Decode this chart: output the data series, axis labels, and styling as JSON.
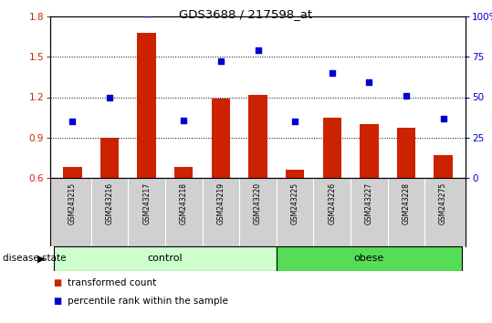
{
  "title": "GDS3688 / 217598_at",
  "samples": [
    "GSM243215",
    "GSM243216",
    "GSM243217",
    "GSM243218",
    "GSM243219",
    "GSM243220",
    "GSM243225",
    "GSM243226",
    "GSM243227",
    "GSM243228",
    "GSM243275"
  ],
  "bar_values": [
    0.68,
    0.9,
    1.68,
    0.68,
    1.19,
    1.22,
    0.66,
    1.05,
    1.0,
    0.97,
    0.77
  ],
  "scatter_values": [
    1.02,
    1.2,
    1.82,
    1.03,
    1.47,
    1.55,
    1.02,
    1.38,
    1.31,
    1.21,
    1.04
  ],
  "bar_color": "#cc2200",
  "scatter_color": "#0000cc",
  "ylim_left": [
    0.6,
    1.8
  ],
  "ylim_right": [
    0,
    100
  ],
  "yticks_left": [
    0.6,
    0.9,
    1.2,
    1.5,
    1.8
  ],
  "yticks_right": [
    0,
    25,
    50,
    75,
    100
  ],
  "ytick_labels_right": [
    "0",
    "25",
    "50",
    "75",
    "100%"
  ],
  "ctrl_color": "#ccffcc",
  "obese_color": "#55dd55",
  "ctrl_samples": 6,
  "obese_samples": 5,
  "group_label": "disease state",
  "legend_bar_label": "transformed count",
  "legend_scatter_label": "percentile rank within the sample",
  "dotted_lines": [
    0.9,
    1.2,
    1.5
  ],
  "label_bg": "#d0d0d0"
}
